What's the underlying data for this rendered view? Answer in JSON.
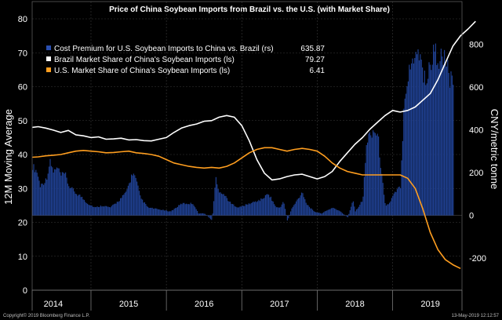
{
  "chart_data": {
    "type": "bar+line",
    "title": "Price of China Soybean Imports from Brazil vs. the U.S. (with Market Share)",
    "ylabel_left": "12M Moving Average",
    "ylabel_right": "CNY/metric tonne",
    "ylim_left": [
      0,
      80
    ],
    "ylim_right": [
      -350,
      920
    ],
    "yticks_left": [
      0,
      10,
      20,
      30,
      40,
      50,
      60,
      70,
      80
    ],
    "yticks_right": [
      -200,
      0,
      200,
      400,
      600,
      800
    ],
    "x_range": [
      2013.72,
      2019.42
    ],
    "x_ticks": [
      "2014",
      "2015",
      "2016",
      "2017",
      "2018",
      "2019"
    ],
    "x_tick_positions": [
      2014.0,
      2015.0,
      2016.0,
      2017.0,
      2018.0,
      2019.0
    ],
    "year_separators": [
      2014.5,
      2015.5,
      2016.5,
      2017.5,
      2018.5
    ],
    "legend": [
      {
        "label": "Cost Premium for U.S. Soybean Imports to China vs. Brazil (rs)",
        "value": "635.87",
        "color": "#1f3f8f"
      },
      {
        "label": "Brazil Market Share of China's Soybean Imports (ls)",
        "value": "79.27",
        "color": "#ffffff"
      },
      {
        "label": "U.S. Market Share of China's Soybean Imports (ls)",
        "value": "6.41",
        "color": "#ff9e1f"
      }
    ],
    "series": [
      {
        "name": "Cost Premium for U.S. Soybean Imports to China vs. Brazil",
        "type": "bar",
        "axis": "right",
        "color": "#1f3f8f",
        "points": [
          [
            2013.72,
            250
          ],
          [
            2013.78,
            220
          ],
          [
            2013.82,
            150
          ],
          [
            2013.9,
            180
          ],
          [
            2013.95,
            270
          ],
          [
            2014.0,
            220
          ],
          [
            2014.05,
            240
          ],
          [
            2014.1,
            200
          ],
          [
            2014.15,
            210
          ],
          [
            2014.2,
            150
          ],
          [
            2014.3,
            110
          ],
          [
            2014.35,
            100
          ],
          [
            2014.45,
            60
          ],
          [
            2014.55,
            40
          ],
          [
            2014.65,
            50
          ],
          [
            2014.75,
            40
          ],
          [
            2014.85,
            70
          ],
          [
            2014.95,
            110
          ],
          [
            2015.0,
            160
          ],
          [
            2015.05,
            220
          ],
          [
            2015.1,
            170
          ],
          [
            2015.15,
            90
          ],
          [
            2015.25,
            40
          ],
          [
            2015.4,
            30
          ],
          [
            2015.55,
            20
          ],
          [
            2015.7,
            60
          ],
          [
            2015.85,
            60
          ],
          [
            2015.92,
            10
          ],
          [
            2016.0,
            10
          ],
          [
            2016.1,
            -25
          ],
          [
            2016.15,
            190
          ],
          [
            2016.18,
            130
          ],
          [
            2016.25,
            110
          ],
          [
            2016.35,
            60
          ],
          [
            2016.45,
            40
          ],
          [
            2016.6,
            60
          ],
          [
            2016.75,
            80
          ],
          [
            2016.85,
            110
          ],
          [
            2016.95,
            40
          ],
          [
            2017.0,
            40
          ],
          [
            2017.05,
            70
          ],
          [
            2017.1,
            -30
          ],
          [
            2017.15,
            30
          ],
          [
            2017.3,
            120
          ],
          [
            2017.35,
            60
          ],
          [
            2017.45,
            20
          ],
          [
            2017.55,
            10
          ],
          [
            2017.7,
            40
          ],
          [
            2017.8,
            20
          ],
          [
            2017.9,
            -10
          ],
          [
            2017.97,
            80
          ],
          [
            2018.0,
            20
          ],
          [
            2018.1,
            80
          ],
          [
            2018.15,
            370
          ],
          [
            2018.2,
            420
          ],
          [
            2018.25,
            430
          ],
          [
            2018.3,
            400
          ],
          [
            2018.35,
            200
          ],
          [
            2018.4,
            50
          ],
          [
            2018.45,
            60
          ],
          [
            2018.5,
            100
          ],
          [
            2018.6,
            150
          ],
          [
            2018.65,
            620
          ],
          [
            2018.7,
            700
          ],
          [
            2018.8,
            850
          ],
          [
            2018.85,
            820
          ],
          [
            2018.9,
            720
          ],
          [
            2018.95,
            680
          ],
          [
            2019.0,
            780
          ],
          [
            2019.05,
            830
          ],
          [
            2019.1,
            800
          ],
          [
            2019.2,
            780
          ],
          [
            2019.25,
            700
          ],
          [
            2019.3,
            636
          ]
        ]
      },
      {
        "name": "Brazil Market Share of China's Soybean Imports",
        "type": "line",
        "axis": "left",
        "color": "#ffffff",
        "points": [
          [
            2013.72,
            48
          ],
          [
            2013.8,
            48.2
          ],
          [
            2013.9,
            47.8
          ],
          [
            2014.0,
            47.2
          ],
          [
            2014.1,
            46.5
          ],
          [
            2014.2,
            47.1
          ],
          [
            2014.3,
            45.8
          ],
          [
            2014.4,
            45.5
          ],
          [
            2014.5,
            45.0
          ],
          [
            2014.6,
            45.2
          ],
          [
            2014.7,
            44.5
          ],
          [
            2014.8,
            44.6
          ],
          [
            2014.9,
            44.8
          ],
          [
            2015.0,
            44.3
          ],
          [
            2015.1,
            44.4
          ],
          [
            2015.2,
            44.1
          ],
          [
            2015.3,
            44.0
          ],
          [
            2015.4,
            44.5
          ],
          [
            2015.5,
            45.0
          ],
          [
            2015.6,
            46.5
          ],
          [
            2015.7,
            47.8
          ],
          [
            2015.8,
            48.5
          ],
          [
            2015.9,
            49.0
          ],
          [
            2016.0,
            49.8
          ],
          [
            2016.1,
            50.0
          ],
          [
            2016.2,
            51.0
          ],
          [
            2016.3,
            51.5
          ],
          [
            2016.4,
            51.0
          ],
          [
            2016.5,
            48.5
          ],
          [
            2016.6,
            44.0
          ],
          [
            2016.7,
            38.5
          ],
          [
            2016.8,
            34.5
          ],
          [
            2016.9,
            32.5
          ],
          [
            2017.0,
            32.8
          ],
          [
            2017.1,
            33.5
          ],
          [
            2017.2,
            34.0
          ],
          [
            2017.3,
            34.2
          ],
          [
            2017.4,
            33.5
          ],
          [
            2017.5,
            32.8
          ],
          [
            2017.6,
            33.5
          ],
          [
            2017.7,
            35.0
          ],
          [
            2017.8,
            38.0
          ],
          [
            2017.9,
            40.5
          ],
          [
            2018.0,
            43.0
          ],
          [
            2018.1,
            45.0
          ],
          [
            2018.2,
            47.5
          ],
          [
            2018.3,
            49.5
          ],
          [
            2018.4,
            51.5
          ],
          [
            2018.5,
            53.0
          ],
          [
            2018.6,
            52.5
          ],
          [
            2018.7,
            53.0
          ],
          [
            2018.8,
            54.0
          ],
          [
            2018.9,
            56.0
          ],
          [
            2019.0,
            58.0
          ],
          [
            2019.1,
            62.0
          ],
          [
            2019.2,
            67.0
          ],
          [
            2019.3,
            72.0
          ],
          [
            2019.4,
            75.0
          ],
          [
            2019.5,
            77.0
          ],
          [
            2019.6,
            79.27
          ]
        ]
      },
      {
        "name": "U.S. Market Share of China's Soybean Imports",
        "type": "line",
        "axis": "left",
        "color": "#ff9e1f",
        "points": [
          [
            2013.72,
            39.2
          ],
          [
            2013.8,
            39.3
          ],
          [
            2013.9,
            39.6
          ],
          [
            2014.0,
            39.8
          ],
          [
            2014.1,
            40.0
          ],
          [
            2014.2,
            40.5
          ],
          [
            2014.3,
            41.0
          ],
          [
            2014.4,
            41.2
          ],
          [
            2014.5,
            41.0
          ],
          [
            2014.6,
            40.8
          ],
          [
            2014.7,
            40.5
          ],
          [
            2014.8,
            40.6
          ],
          [
            2014.9,
            40.8
          ],
          [
            2015.0,
            41.0
          ],
          [
            2015.1,
            40.5
          ],
          [
            2015.2,
            40.3
          ],
          [
            2015.3,
            40.0
          ],
          [
            2015.4,
            39.5
          ],
          [
            2015.5,
            38.5
          ],
          [
            2015.6,
            37.5
          ],
          [
            2015.7,
            37.0
          ],
          [
            2015.8,
            36.5
          ],
          [
            2015.9,
            36.2
          ],
          [
            2016.0,
            36.0
          ],
          [
            2016.1,
            36.2
          ],
          [
            2016.2,
            36.0
          ],
          [
            2016.3,
            36.5
          ],
          [
            2016.4,
            37.5
          ],
          [
            2016.5,
            39.0
          ],
          [
            2016.6,
            40.5
          ],
          [
            2016.7,
            41.5
          ],
          [
            2016.8,
            42.0
          ],
          [
            2016.9,
            42.0
          ],
          [
            2017.0,
            41.5
          ],
          [
            2017.1,
            41.0
          ],
          [
            2017.2,
            41.5
          ],
          [
            2017.3,
            41.8
          ],
          [
            2017.4,
            41.5
          ],
          [
            2017.5,
            41.0
          ],
          [
            2017.6,
            39.5
          ],
          [
            2017.7,
            37.5
          ],
          [
            2017.8,
            36.0
          ],
          [
            2017.9,
            35.0
          ],
          [
            2018.0,
            34.5
          ],
          [
            2018.1,
            34.0
          ],
          [
            2018.2,
            34.0
          ],
          [
            2018.3,
            34.0
          ],
          [
            2018.4,
            34.0
          ],
          [
            2018.5,
            34.0
          ],
          [
            2018.6,
            34.0
          ],
          [
            2018.7,
            33.0
          ],
          [
            2018.8,
            30.0
          ],
          [
            2018.9,
            24.0
          ],
          [
            2019.0,
            17.0
          ],
          [
            2019.1,
            12.0
          ],
          [
            2019.2,
            9.0
          ],
          [
            2019.3,
            7.5
          ],
          [
            2019.4,
            6.41
          ]
        ]
      }
    ]
  },
  "footer": {
    "copyright": "Copyright© 2019 Bloomberg Finance L.P.",
    "timestamp": "13-May-2019 12:12:57"
  }
}
